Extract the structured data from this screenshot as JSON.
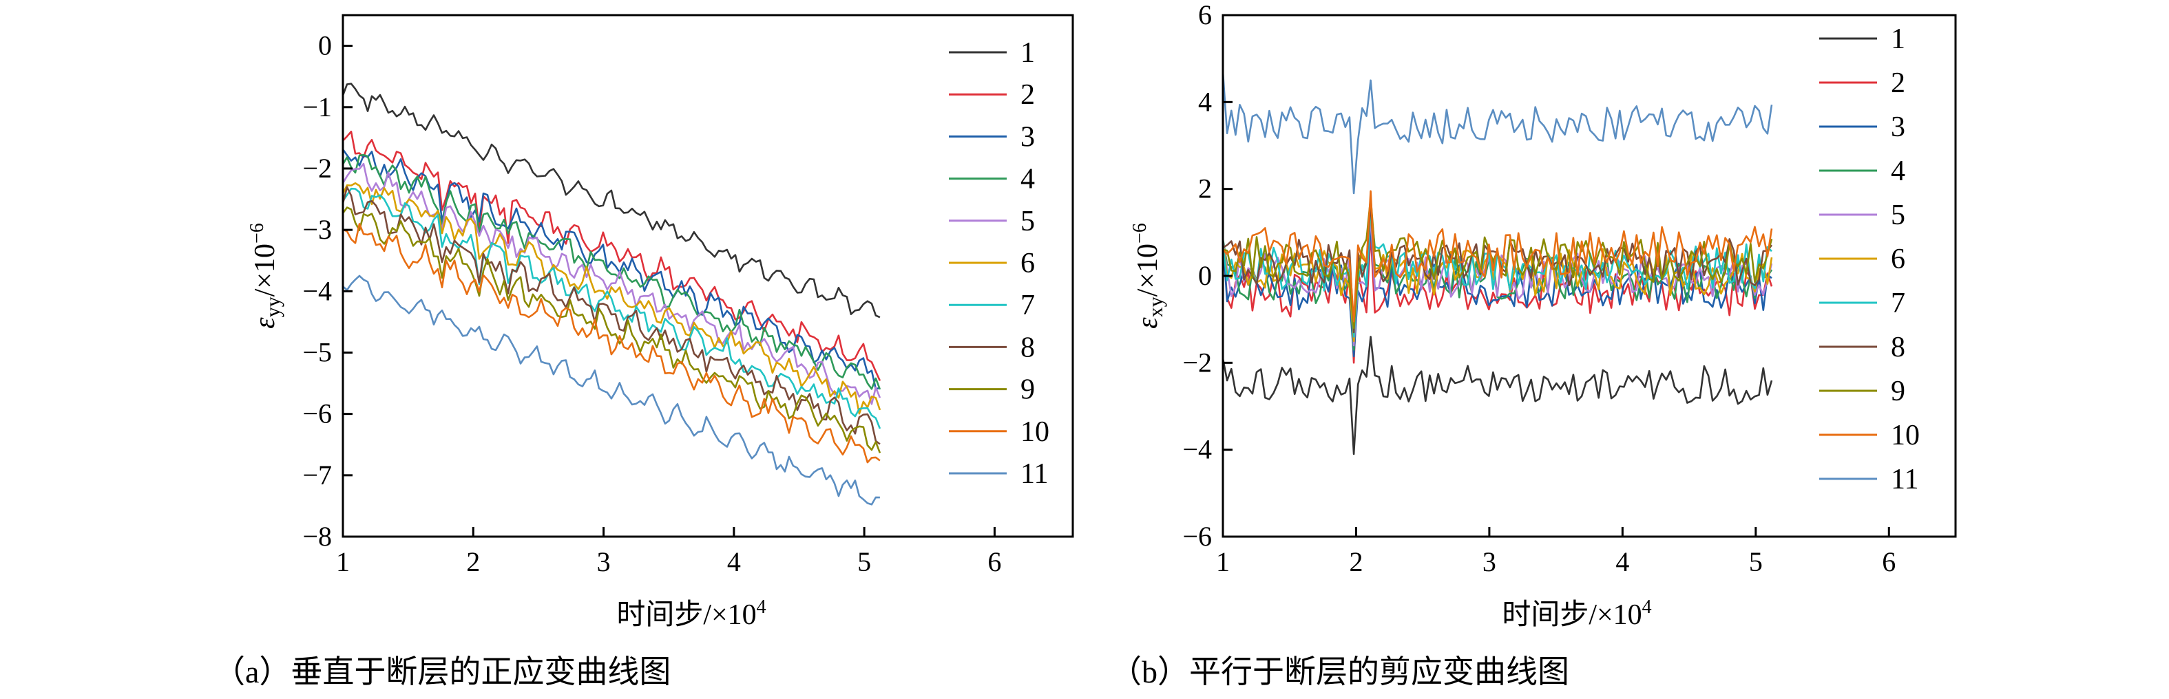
{
  "chart_data": [
    {
      "panel": "a",
      "type": "line",
      "caption": "（a）垂直于断层的正应变曲线图",
      "xlabel": "时间步/×10",
      "xlabel_sup": "4",
      "ylabel_main": "ε",
      "ylabel_sub": "yy",
      "ylabel_unit": "/×10",
      "ylabel_sup": "−6",
      "xlim": [
        1,
        6.6
      ],
      "ylim": [
        -8,
        0.5
      ],
      "xticks": [
        1,
        2,
        3,
        4,
        5,
        6
      ],
      "yticks": [
        0,
        -1,
        -2,
        -3,
        -4,
        -5,
        -6,
        -7,
        -8
      ],
      "ytick_labels": [
        "0",
        "−1",
        "−2",
        "−3",
        "−4",
        "−5",
        "−6",
        "−7",
        "−8"
      ],
      "x_range": [
        1,
        5.12
      ],
      "series": [
        {
          "name": "1",
          "color": "#333333",
          "start": -0.7,
          "end": -4.45,
          "noise": 0.22
        },
        {
          "name": "2",
          "color": "#e0313a",
          "start": -1.5,
          "end": -5.2,
          "noise": 0.3
        },
        {
          "name": "3",
          "color": "#1f5faa",
          "start": -1.65,
          "end": -5.4,
          "noise": 0.3
        },
        {
          "name": "4",
          "color": "#2e9a59",
          "start": -1.8,
          "end": -5.55,
          "noise": 0.3
        },
        {
          "name": "5",
          "color": "#b07fd8",
          "start": -2.0,
          "end": -5.75,
          "noise": 0.3
        },
        {
          "name": "6",
          "color": "#d9a000",
          "start": -2.15,
          "end": -5.9,
          "noise": 0.3
        },
        {
          "name": "7",
          "color": "#21c4c4",
          "start": -2.35,
          "end": -6.1,
          "noise": 0.3
        },
        {
          "name": "8",
          "color": "#7a4a3a",
          "start": -2.5,
          "end": -6.3,
          "noise": 0.3
        },
        {
          "name": "9",
          "color": "#8a8a00",
          "start": -2.7,
          "end": -6.5,
          "noise": 0.3
        },
        {
          "name": "10",
          "color": "#e86e12",
          "start": -2.9,
          "end": -6.75,
          "noise": 0.3
        },
        {
          "name": "11",
          "color": "#5b8ec2",
          "start": -3.75,
          "end": -7.45,
          "noise": 0.22
        }
      ]
    },
    {
      "panel": "b",
      "type": "line",
      "caption": "（b）平行于断层的剪应变曲线图",
      "xlabel": "时间步/×10",
      "xlabel_sup": "4",
      "ylabel_main": "ε",
      "ylabel_sub": "xy",
      "ylabel_unit": "/×10",
      "ylabel_sup": "−6",
      "xlim": [
        1,
        6.5
      ],
      "ylim": [
        -6,
        6
      ],
      "xticks": [
        1,
        2,
        3,
        4,
        5,
        6
      ],
      "yticks": [
        6,
        4,
        2,
        0,
        -2,
        -4,
        -6
      ],
      "ytick_labels": [
        "6",
        "4",
        "2",
        "0",
        "−2",
        "−4",
        "−6"
      ],
      "x_range": [
        1,
        5.12
      ],
      "series": [
        {
          "name": "1",
          "color": "#333333",
          "mean": -2.5,
          "amp": 0.45
        },
        {
          "name": "2",
          "color": "#e0313a",
          "mean": -0.4,
          "amp": 0.55
        },
        {
          "name": "3",
          "color": "#1f5faa",
          "mean": -0.25,
          "amp": 0.55
        },
        {
          "name": "4",
          "color": "#2e9a59",
          "mean": -0.1,
          "amp": 0.55
        },
        {
          "name": "5",
          "color": "#b07fd8",
          "mean": 0.0,
          "amp": 0.55
        },
        {
          "name": "6",
          "color": "#d9a000",
          "mean": 0.1,
          "amp": 0.55
        },
        {
          "name": "7",
          "color": "#21c4c4",
          "mean": 0.2,
          "amp": 0.55
        },
        {
          "name": "8",
          "color": "#7a4a3a",
          "mean": 0.3,
          "amp": 0.55
        },
        {
          "name": "9",
          "color": "#8a8a00",
          "mean": 0.4,
          "amp": 0.55
        },
        {
          "name": "10",
          "color": "#e86e12",
          "mean": 0.55,
          "amp": 0.6
        },
        {
          "name": "11",
          "color": "#5b8ec2",
          "mean": 3.5,
          "amp": 0.45
        }
      ]
    }
  ]
}
